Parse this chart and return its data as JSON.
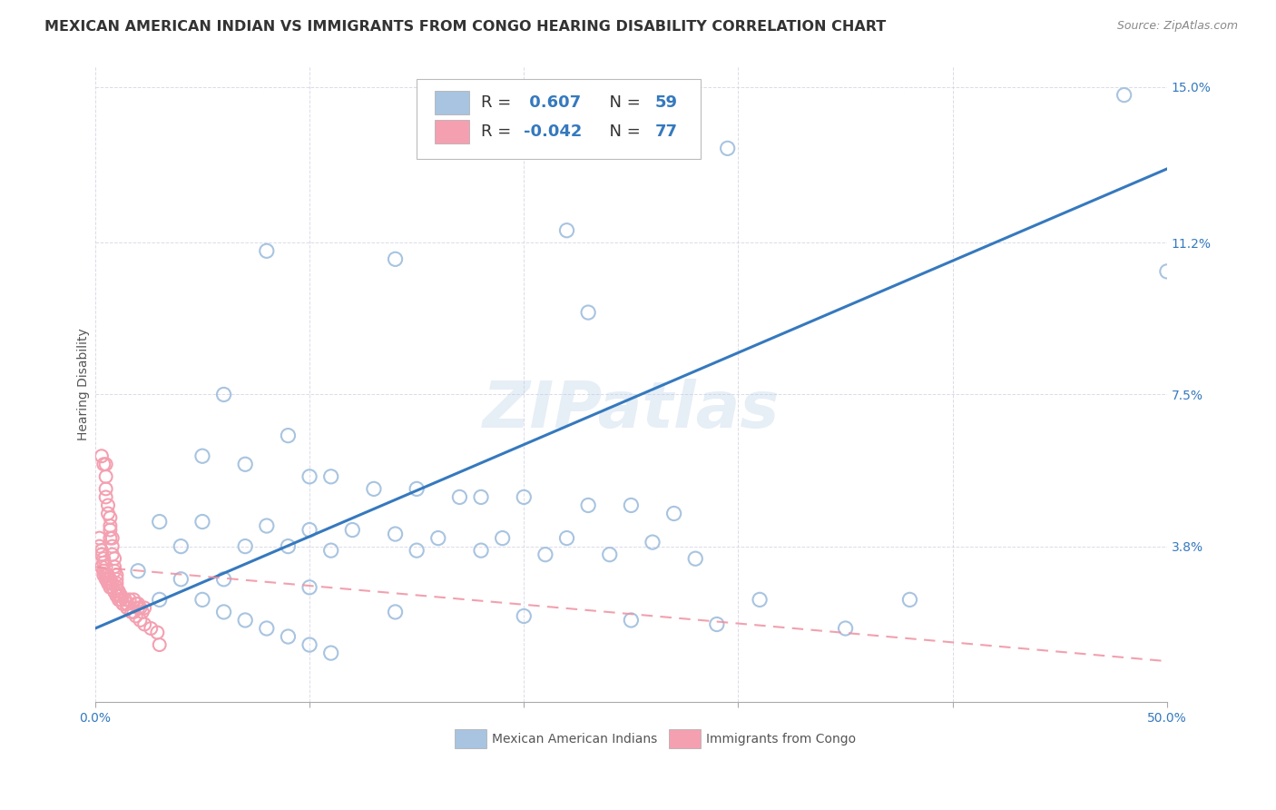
{
  "title": "MEXICAN AMERICAN INDIAN VS IMMIGRANTS FROM CONGO HEARING DISABILITY CORRELATION CHART",
  "source": "Source: ZipAtlas.com",
  "ylabel": "Hearing Disability",
  "xlim": [
    0.0,
    0.5
  ],
  "ylim": [
    0.0,
    0.155
  ],
  "blue_R": 0.607,
  "blue_N": 59,
  "pink_R": -0.042,
  "pink_N": 77,
  "blue_color": "#a8c4e0",
  "pink_color": "#f4a0b0",
  "blue_line_color": "#3579be",
  "pink_line_color": "#f090a0",
  "legend_label_blue": "Mexican American Indians",
  "legend_label_pink": "Immigrants from Congo",
  "watermark": "ZIPatlas",
  "ylabel_ticks": [
    "3.8%",
    "7.5%",
    "11.2%",
    "15.0%"
  ],
  "ylabel_vals": [
    0.038,
    0.075,
    0.112,
    0.15
  ],
  "blue_line_x0": 0.0,
  "blue_line_y0": 0.018,
  "blue_line_x1": 0.5,
  "blue_line_y1": 0.13,
  "pink_line_x0": 0.0,
  "pink_line_y0": 0.033,
  "pink_line_x1": 0.5,
  "pink_line_y1": 0.01,
  "blue_scatter_x": [
    0.295,
    0.14,
    0.23,
    0.06,
    0.09,
    0.05,
    0.07,
    0.1,
    0.11,
    0.13,
    0.15,
    0.17,
    0.18,
    0.2,
    0.23,
    0.25,
    0.27,
    0.03,
    0.05,
    0.08,
    0.1,
    0.12,
    0.14,
    0.16,
    0.19,
    0.22,
    0.26,
    0.04,
    0.07,
    0.09,
    0.11,
    0.15,
    0.18,
    0.21,
    0.24,
    0.28,
    0.06,
    0.1,
    0.14,
    0.2,
    0.25,
    0.29,
    0.35,
    0.48,
    0.08,
    0.22,
    0.31,
    0.5,
    0.38,
    0.02,
    0.03,
    0.04,
    0.05,
    0.06,
    0.07,
    0.08,
    0.09,
    0.1,
    0.11
  ],
  "blue_scatter_y": [
    0.135,
    0.108,
    0.095,
    0.075,
    0.065,
    0.06,
    0.058,
    0.055,
    0.055,
    0.052,
    0.052,
    0.05,
    0.05,
    0.05,
    0.048,
    0.048,
    0.046,
    0.044,
    0.044,
    0.043,
    0.042,
    0.042,
    0.041,
    0.04,
    0.04,
    0.04,
    0.039,
    0.038,
    0.038,
    0.038,
    0.037,
    0.037,
    0.037,
    0.036,
    0.036,
    0.035,
    0.03,
    0.028,
    0.022,
    0.021,
    0.02,
    0.019,
    0.018,
    0.148,
    0.11,
    0.115,
    0.025,
    0.105,
    0.025,
    0.032,
    0.025,
    0.03,
    0.025,
    0.022,
    0.02,
    0.018,
    0.016,
    0.014,
    0.012
  ],
  "pink_scatter_x": [
    0.003,
    0.004,
    0.005,
    0.005,
    0.005,
    0.005,
    0.006,
    0.006,
    0.007,
    0.007,
    0.007,
    0.007,
    0.008,
    0.008,
    0.008,
    0.009,
    0.009,
    0.009,
    0.01,
    0.01,
    0.01,
    0.01,
    0.011,
    0.012,
    0.012,
    0.013,
    0.015,
    0.015,
    0.017,
    0.018,
    0.02,
    0.022,
    0.003,
    0.004,
    0.004,
    0.005,
    0.006,
    0.007,
    0.008,
    0.009,
    0.01,
    0.011,
    0.012,
    0.014,
    0.016,
    0.018,
    0.019,
    0.02,
    0.021,
    0.023,
    0.002,
    0.003,
    0.003,
    0.004,
    0.005,
    0.006,
    0.007,
    0.008,
    0.009,
    0.01,
    0.011,
    0.013,
    0.015,
    0.017,
    0.019,
    0.021,
    0.023,
    0.026,
    0.029,
    0.03,
    0.002,
    0.003,
    0.004,
    0.004,
    0.005,
    0.006,
    0.007
  ],
  "pink_scatter_y": [
    0.06,
    0.058,
    0.058,
    0.055,
    0.052,
    0.05,
    0.048,
    0.046,
    0.045,
    0.043,
    0.042,
    0.04,
    0.04,
    0.038,
    0.036,
    0.035,
    0.033,
    0.032,
    0.031,
    0.03,
    0.029,
    0.028,
    0.027,
    0.026,
    0.025,
    0.024,
    0.024,
    0.023,
    0.022,
    0.022,
    0.023,
    0.022,
    0.037,
    0.035,
    0.034,
    0.033,
    0.031,
    0.03,
    0.029,
    0.027,
    0.026,
    0.026,
    0.025,
    0.025,
    0.025,
    0.025,
    0.024,
    0.024,
    0.023,
    0.023,
    0.038,
    0.036,
    0.033,
    0.032,
    0.031,
    0.03,
    0.029,
    0.028,
    0.027,
    0.026,
    0.025,
    0.024,
    0.023,
    0.022,
    0.021,
    0.02,
    0.019,
    0.018,
    0.017,
    0.014,
    0.04,
    0.036,
    0.032,
    0.031,
    0.03,
    0.029,
    0.028
  ],
  "title_fontsize": 11.5,
  "source_fontsize": 9,
  "axis_label_fontsize": 10,
  "tick_fontsize": 10,
  "watermark_fontsize": 52,
  "background_color": "#ffffff",
  "grid_color": "#d8d8e8"
}
